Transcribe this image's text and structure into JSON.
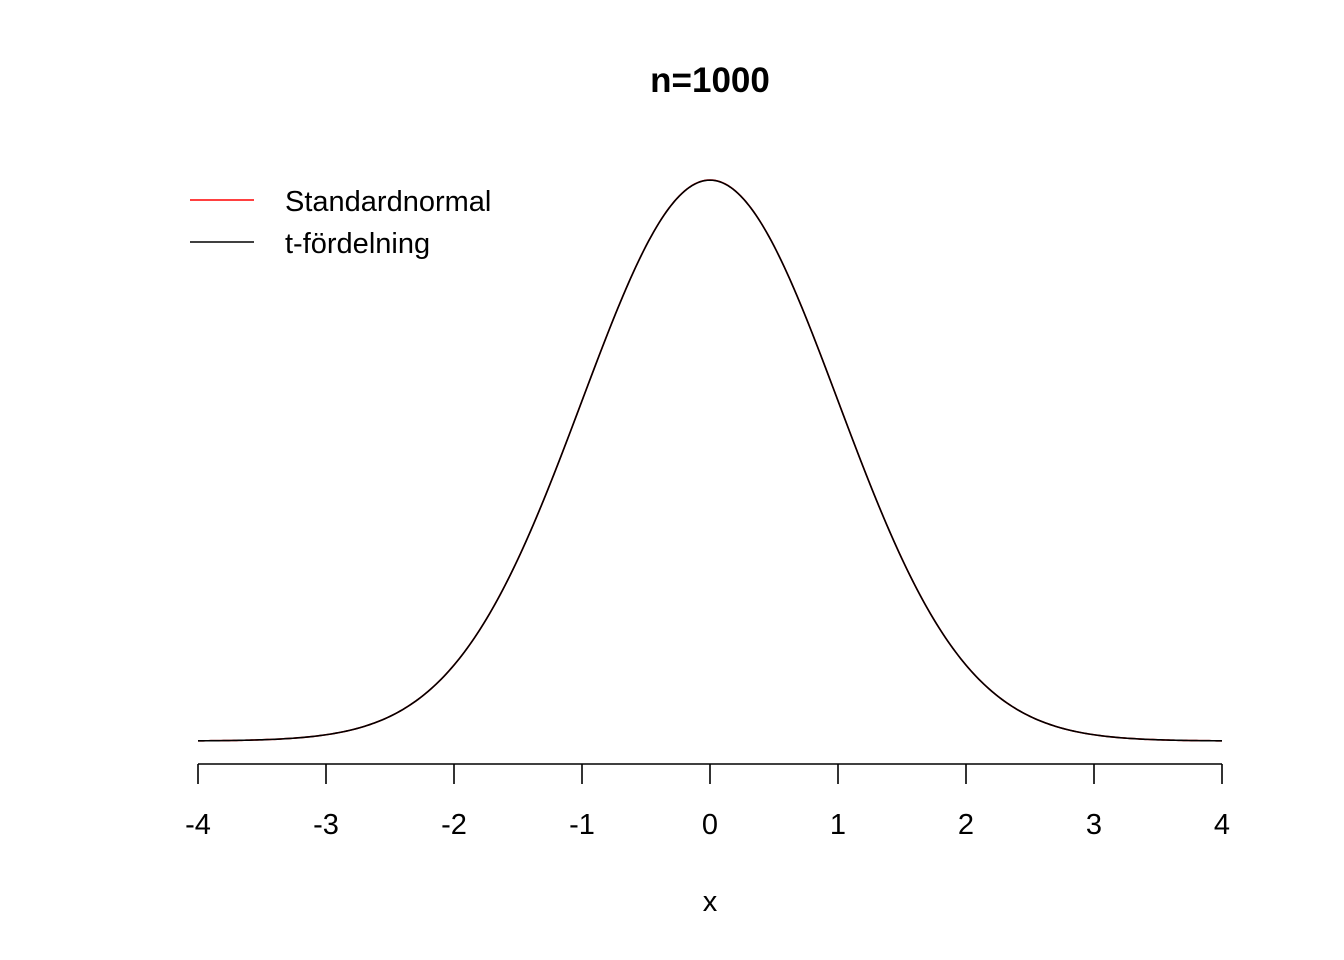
{
  "chart_data": {
    "type": "line",
    "title": "n=1000",
    "xlabel": "x",
    "ylabel": "",
    "xlim": [
      -4,
      4
    ],
    "x_ticks": [
      -4,
      -3,
      -2,
      -1,
      0,
      1,
      2,
      3,
      4
    ],
    "x_tick_labels": [
      "-4",
      "-3",
      "-2",
      "-1",
      "0",
      "1",
      "2",
      "3",
      "4"
    ],
    "y_axis_shown": false,
    "legend_position": "top-left",
    "series": [
      {
        "name": "Standardnormal",
        "color": "#ff0000",
        "x": [
          -4,
          -3.5,
          -3,
          -2.5,
          -2,
          -1.5,
          -1,
          -0.5,
          0,
          0.5,
          1,
          1.5,
          2,
          2.5,
          3,
          3.5,
          4
        ],
        "y": [
          0.000134,
          0.000873,
          0.004432,
          0.017528,
          0.053991,
          0.129518,
          0.241971,
          0.352065,
          0.398942,
          0.352065,
          0.241971,
          0.129518,
          0.053991,
          0.017528,
          0.004432,
          0.000873,
          0.000134
        ]
      },
      {
        "name": "t-fördelning",
        "color": "#000000",
        "x": [
          -4,
          -3.5,
          -3,
          -2.5,
          -2,
          -1.5,
          -1,
          -0.5,
          0,
          0.5,
          1,
          1.5,
          2,
          2.5,
          3,
          3.5,
          4
        ],
        "y": [
          0.00014,
          0.000895,
          0.004489,
          0.017632,
          0.054079,
          0.129521,
          0.241896,
          0.351981,
          0.398843,
          0.351981,
          0.241896,
          0.129521,
          0.054079,
          0.017632,
          0.004489,
          0.000895,
          0.00014
        ]
      }
    ]
  }
}
